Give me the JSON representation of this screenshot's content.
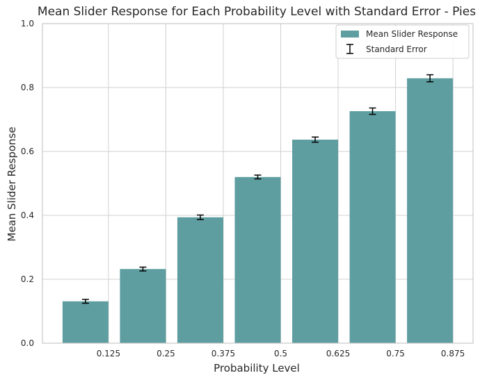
{
  "chart_data": {
    "type": "bar",
    "title": "Mean Slider Response for Each Probability Level with Standard Error - Pies",
    "xlabel": "Probability Level",
    "ylabel": "Mean Slider Response",
    "ylim": [
      0,
      1
    ],
    "yticks": [
      "0.0",
      "0.2",
      "0.4",
      "0.6",
      "0.8",
      "1.0"
    ],
    "xtick_labels": [
      "0.125",
      "0.25",
      "0.375",
      "0.5",
      "0.625",
      "0.75",
      "0.875"
    ],
    "categories": [
      "0.125",
      "0.25",
      "0.375",
      "0.5",
      "0.625",
      "0.75",
      "0.875"
    ],
    "series": [
      {
        "name": "Mean Slider Response",
        "values": [
          0.131,
          0.232,
          0.394,
          0.52,
          0.637,
          0.726,
          0.829
        ],
        "errors": [
          0.006,
          0.006,
          0.007,
          0.006,
          0.008,
          0.01,
          0.011
        ]
      }
    ],
    "legend": {
      "placement": "top-right",
      "entries": [
        "Mean Slider Response",
        "Standard Error"
      ]
    },
    "grid": true,
    "colors": {
      "bar": "#5f9ea0",
      "error": "#000000",
      "grid": "#d0d0d0",
      "spine": "#c8c8c8"
    }
  }
}
